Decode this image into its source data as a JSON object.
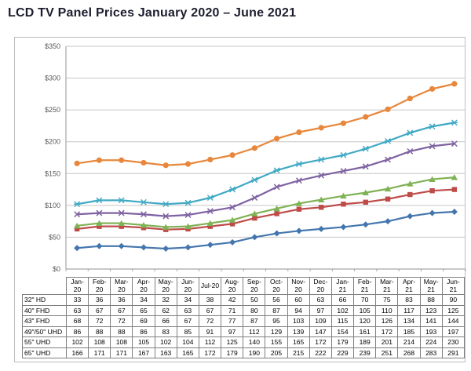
{
  "page": {
    "title": "LCD TV Panel Prices January 2020 – June 2021"
  },
  "chart_data": {
    "type": "line",
    "title": "LCD TV Panel Prices January 2020 – June 2021",
    "categories": [
      "Jan-20",
      "Feb-20",
      "Mar-20",
      "Apr-20",
      "May-20",
      "Jun-20",
      "Jul-20",
      "Aug-20",
      "Sep-20",
      "Oct-20",
      "Nov-20",
      "Dec-20",
      "Jan-21",
      "Feb-21",
      "Mar-21",
      "Apr-21",
      "May-21",
      "Jun-21"
    ],
    "categories_display": [
      "Jan-\n20",
      "Feb-\n20",
      "Mar-\n20",
      "Apr-\n20",
      "May-\n20",
      "Jun-\n20",
      "Jul-20",
      "Aug-\n20",
      "Sep-\n20",
      "Oct-\n20",
      "Nov-\n20",
      "Dec-\n20",
      "Jan-\n21",
      "Feb-\n21",
      "Mar-\n21",
      "Apr-\n21",
      "May-\n21",
      "Jun-\n21"
    ],
    "series": [
      {
        "name": "32\" HD",
        "color": "#4476AE",
        "marker": "diamond",
        "values": [
          33,
          36,
          36,
          34,
          32,
          34,
          38,
          42,
          50,
          56,
          60,
          63,
          66,
          70,
          75,
          83,
          88,
          90
        ]
      },
      {
        "name": "40\" FHD",
        "color": "#BE4B48",
        "marker": "square",
        "values": [
          63,
          67,
          67,
          65,
          62,
          63,
          67,
          71,
          80,
          87,
          94,
          97,
          102,
          105,
          110,
          117,
          123,
          125
        ]
      },
      {
        "name": "43\" FHD",
        "color": "#7FB254",
        "marker": "triangle",
        "values": [
          68,
          72,
          72,
          69,
          66,
          67,
          72,
          77,
          87,
          95,
          103,
          109,
          115,
          120,
          126,
          134,
          141,
          144
        ]
      },
      {
        "name": "49\"/50\" UHD",
        "color": "#7E62A1",
        "marker": "x",
        "values": [
          86,
          88,
          88,
          86,
          83,
          85,
          91,
          97,
          112,
          129,
          139,
          147,
          154,
          161,
          172,
          185,
          193,
          197
        ]
      },
      {
        "name": "55\" UHD",
        "color": "#41A9C4",
        "marker": "asterisk",
        "values": [
          102,
          108,
          108,
          105,
          102,
          104,
          112,
          125,
          140,
          155,
          165,
          172,
          179,
          189,
          201,
          214,
          224,
          230
        ]
      },
      {
        "name": "65\" UHD",
        "color": "#E8873B",
        "marker": "circle",
        "values": [
          166,
          171,
          171,
          167,
          163,
          165,
          172,
          179,
          190,
          205,
          215,
          222,
          229,
          239,
          251,
          268,
          283,
          291
        ]
      }
    ],
    "ylim": [
      0,
      350
    ],
    "ytick_step": 50,
    "ytick_labels": [
      "$0",
      "$50",
      "$100",
      "$150",
      "$200",
      "$250",
      "$300",
      "$350"
    ],
    "grid": true,
    "legend_position": "none",
    "data_table_attached": true,
    "colors": {
      "gridline": "#c6c6c6",
      "axis": "#a6a6a6",
      "table_border": "#7f7f7f",
      "frame_border": "#bdbdbd",
      "tick_label": "#595959",
      "title_text": "#1c1c2e"
    }
  }
}
